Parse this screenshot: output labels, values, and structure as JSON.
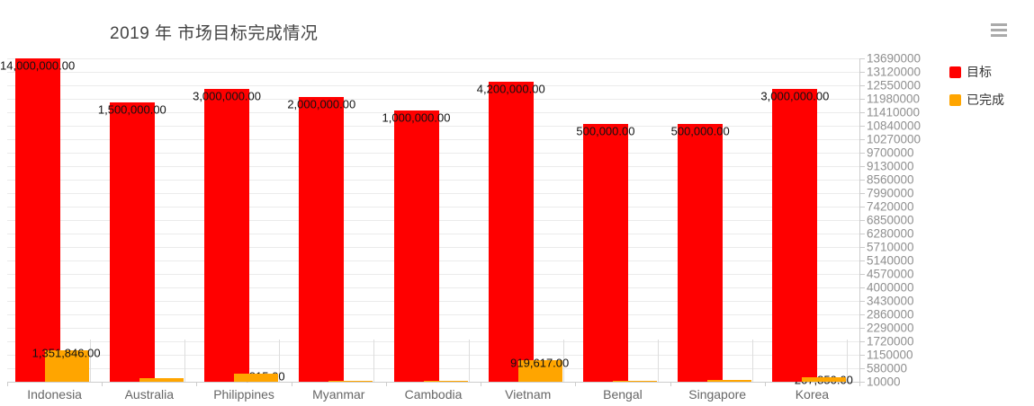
{
  "header": {
    "title": "2019 年 市场目标完成情况"
  },
  "menu": {
    "icon": "hamburger-icon"
  },
  "legend": {
    "items": [
      {
        "label": "目标",
        "color": "#ff0000"
      },
      {
        "label": "已完成",
        "color": "#ffa500"
      }
    ]
  },
  "chart_data": {
    "type": "bar",
    "title": "2019 年 市场目标完成情况",
    "legend_position": "top-right",
    "grid": true,
    "categories": [
      "Indonesia",
      "Australia",
      "Philippines",
      "Myanmar",
      "Cambodia",
      "Vietnam",
      "Bengal",
      "Singapore",
      "Korea"
    ],
    "series": [
      {
        "name": "目标",
        "color": "#ff0000",
        "scale": "log",
        "values": [
          14000000,
          1500000,
          3000000,
          2000000,
          1000000,
          4200000,
          500000,
          500000,
          3000000
        ],
        "labels": [
          "14,000,000.00",
          "1,500,000.00",
          "3,000,000.00",
          "2,000,000.00",
          "1,000,000.00",
          "4,200,000.00",
          "500,000.00",
          "500,000.00",
          "3,000,000.00"
        ],
        "label_over_bar": [
          true,
          true,
          true,
          true,
          true,
          true,
          true,
          true,
          true
        ]
      },
      {
        "name": "已完成",
        "color": "#ffa500",
        "scale": "linear-right-axis",
        "values": [
          1351846,
          180000,
          344815,
          30000,
          30000,
          919617,
          30000,
          100000,
          207850
        ],
        "labels": [
          "1,351,846.00",
          "",
          "344,815.00",
          "",
          "",
          "919,617.00",
          "",
          "",
          "207,850.00"
        ],
        "label_over_bar": [
          true,
          false,
          false,
          false,
          false,
          true,
          false,
          false,
          false
        ]
      }
    ],
    "y_axis": {
      "position": "right",
      "min": 10000,
      "max": 13690000,
      "interval": 570000,
      "tick_labels": [
        "13690000",
        "13120000",
        "12550000",
        "11980000",
        "11410000",
        "10840000",
        "10270000",
        "9700000",
        "9130000",
        "8560000",
        "7990000",
        "7420000",
        "6850000",
        "6280000",
        "5710000",
        "5140000",
        "4570000",
        "4000000",
        "3430000",
        "2860000",
        "2290000",
        "1720000",
        "1150000",
        "580000",
        "10000"
      ]
    },
    "xlabel": "",
    "ylabel": ""
  }
}
